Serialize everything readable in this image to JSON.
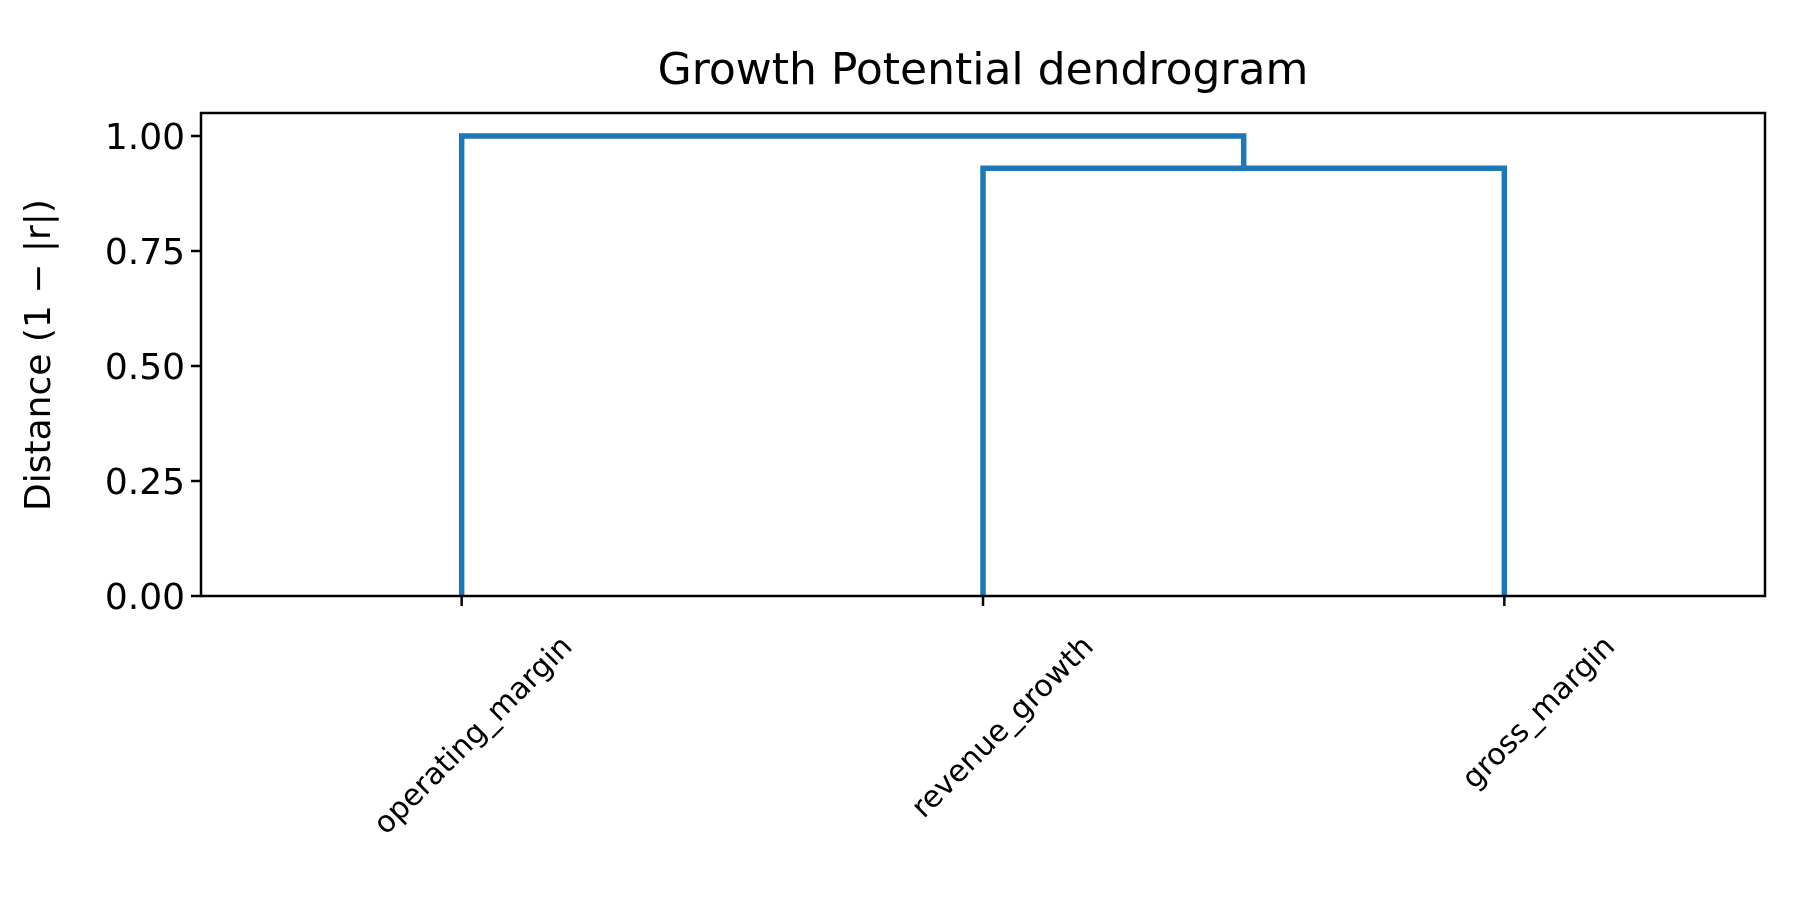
{
  "chart_data": {
    "type": "dendrogram",
    "title": "Growth Potential dendrogram",
    "xlabel": "",
    "ylabel": "Distance (1 − |r|)",
    "ylim": [
      0,
      1.05
    ],
    "y_ticks": [
      "0.00",
      "0.25",
      "0.50",
      "0.75",
      "1.00"
    ],
    "y_tick_values": [
      0,
      0.25,
      0.5,
      0.75,
      1.0
    ],
    "leaves": [
      "operating_margin",
      "revenue_growth",
      "gross_margin"
    ],
    "merges": [
      {
        "left": "revenue_growth",
        "right": "gross_margin",
        "height": 0.93
      },
      {
        "left": "operating_margin",
        "right": "cluster(revenue_growth, gross_margin)",
        "height": 1.0
      }
    ],
    "link_color": "#1f77b4",
    "grid": false,
    "legend": "none"
  }
}
